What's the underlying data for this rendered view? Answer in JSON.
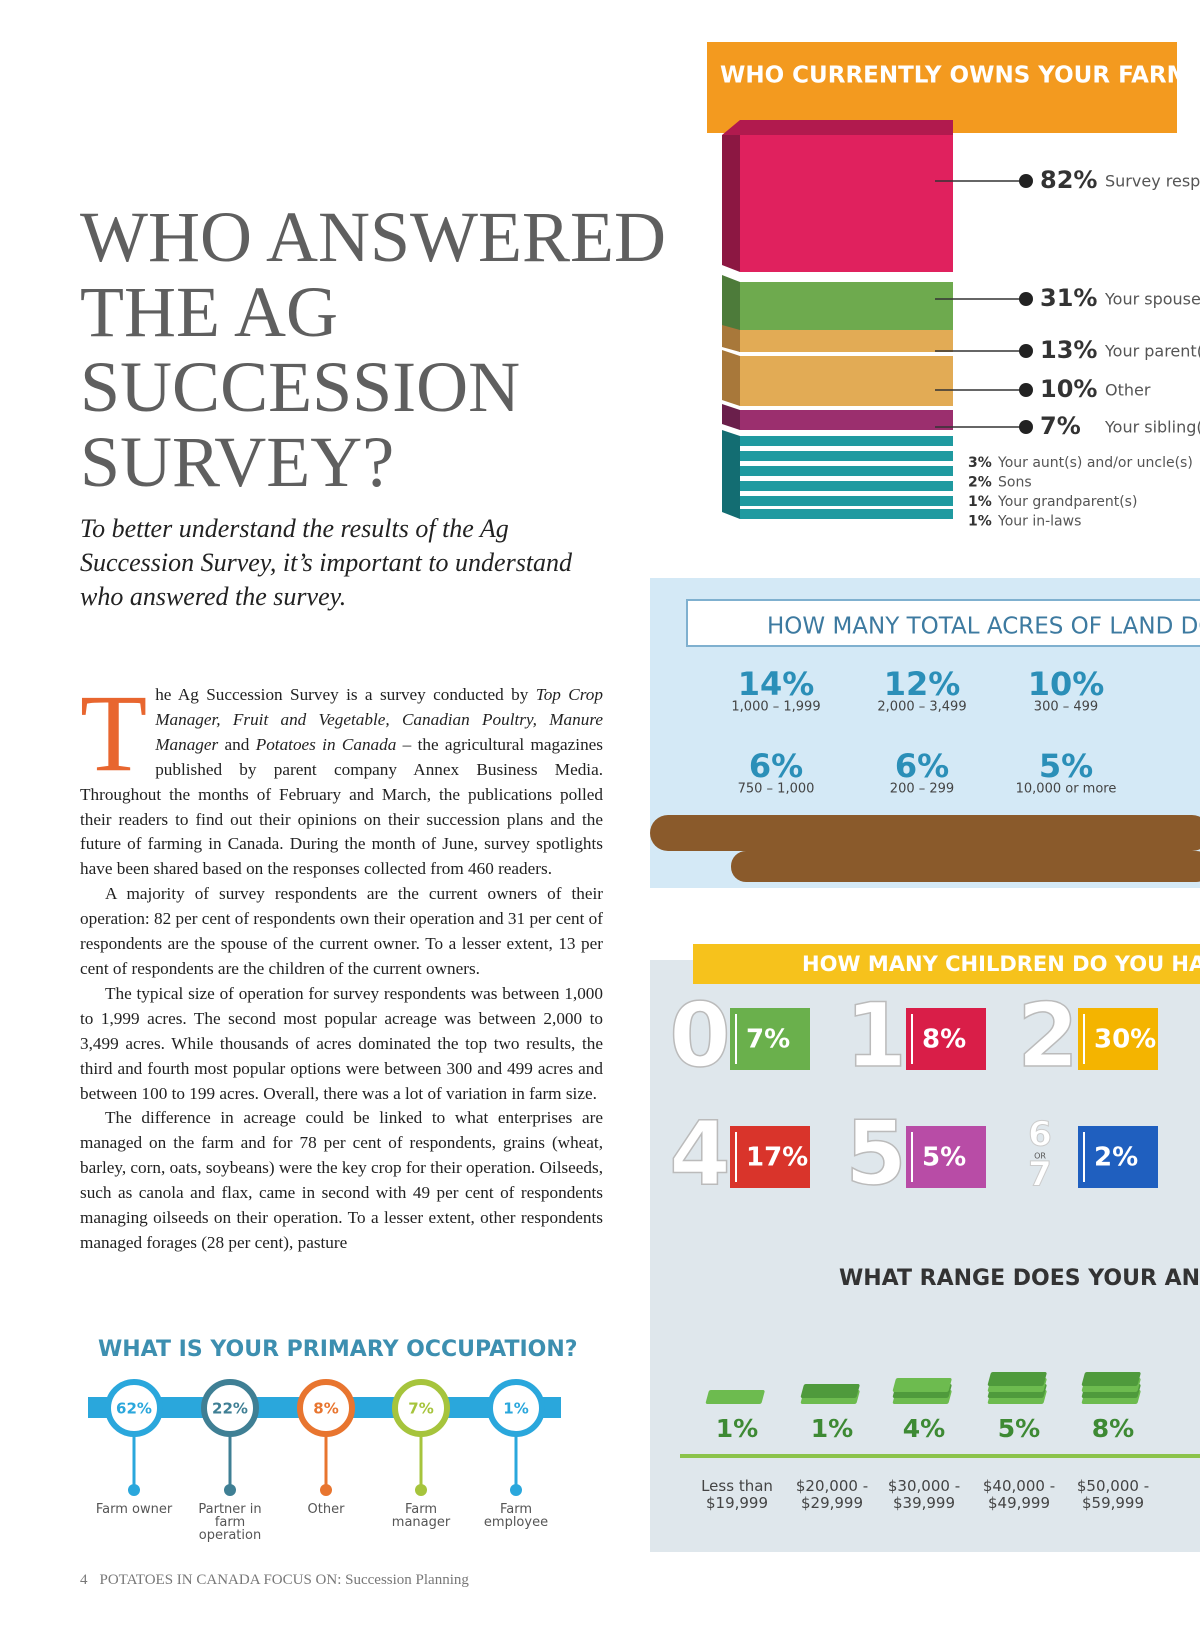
{
  "header": {
    "title": "WHO ANSWERED THE AG SUCCESSION SURVEY?",
    "subtitle": "To better understand the results of the Ag Succession Survey, it’s important to understand who answered the survey."
  },
  "article": {
    "drop_cap": "T",
    "paragraphs": [
      [
        "he Ag Succession Survey is a survey conducted by ",
        "Top Crop Manager, Fruit and Vegetable, Canadian Poultry, Manure Manager",
        " and ",
        "Potatoes in Canada",
        " – the agricultural magazines published by parent company Annex Business Media. Throughout the months of February and March, the publications polled their readers to find out their opinions on their succession plans and the future of farming in Canada. During the month of June, survey spotlights have been shared based on the responses collected from 460 readers."
      ],
      [
        "A majority of survey respondents are the current owners of their operation: 82 per cent of respondents own their operation and 31 per cent of respondents are the spouse of the current owner. To a lesser extent, 13 per cent of respondents are the children of the current owners."
      ],
      [
        "The typical size of operation for survey respondents was between 1,000 to 1,999 acres. The second most popular acreage was between 2,000 to 3,499 acres. While thousands of acres dominated the top two results, the third and fourth most popular options were between 300 and 499 acres and between 100 to 199 acres. Overall, there was a lot of variation in farm size."
      ],
      [
        "The difference in acreage could be linked to what enterprises are managed on the farm and for 78 per cent of respondents, grains (wheat, barley, corn, oats, soybeans) were the key crop for their operation. Oilseeds, such as canola and flax, came in second with 49 per cent of respondents managing oilseeds on their operation. To a lesser extent, other respondents managed forages (28 per cent), pasture"
      ]
    ]
  },
  "occupation": {
    "title": "WHAT IS YOUR PRIMARY OCCUPATION?",
    "items": [
      {
        "value": "62%",
        "label": "Farm owner"
      },
      {
        "value": "22%",
        "label": "Partner in farm operation"
      },
      {
        "value": "8%",
        "label": "Other"
      },
      {
        "value": "7%",
        "label": "Farm manager"
      },
      {
        "value": "1%",
        "label": "Farm employee"
      }
    ]
  },
  "ownership": {
    "title": "WHO CURRENTLY OWNS YOUR FARM?",
    "items": [
      {
        "value": "82%",
        "label": "Survey resp"
      },
      {
        "value": "31%",
        "label": "Your spouse"
      },
      {
        "value": "13%",
        "label": "Your parent("
      },
      {
        "value": "10%",
        "label": "Other"
      },
      {
        "value": "7%",
        "label": "Your sibling(s)"
      }
    ],
    "minor": [
      {
        "value": "3%",
        "label": "Your aunt(s) and/or uncle(s)"
      },
      {
        "value": "2%",
        "label": "Sons"
      },
      {
        "value": "1%",
        "label": "Your grandparent(s)"
      },
      {
        "value": "1%",
        "label": "Your in-laws"
      }
    ]
  },
  "acres": {
    "title": "HOW MANY TOTAL ACRES OF LAND DO",
    "items": [
      {
        "value": "14%",
        "label": "1,000 – 1,999"
      },
      {
        "value": "12%",
        "label": "2,000 – 3,499"
      },
      {
        "value": "10%",
        "label": "300 – 499"
      },
      {
        "value": "6%",
        "label": "750 – 1,000"
      },
      {
        "value": "6%",
        "label": "200 – 299"
      },
      {
        "value": "5%",
        "label": "10,000 or more"
      }
    ]
  },
  "children": {
    "title": "HOW MANY CHILDREN DO YOU HAVE?",
    "items": [
      {
        "count": "0",
        "value": "7%"
      },
      {
        "count": "1",
        "value": "8%"
      },
      {
        "count": "2",
        "value": "30%"
      },
      {
        "count": "4",
        "value": "17%"
      },
      {
        "count": "5",
        "value": "5%"
      },
      {
        "count": "6",
        "or": "OR",
        "count2": "7",
        "value": "2%"
      }
    ]
  },
  "income": {
    "title": "WHAT RANGE DOES YOUR ANNUA",
    "items": [
      {
        "value": "1%",
        "label": "Less than $19,999"
      },
      {
        "value": "1%",
        "label": "$20,000 - $29,999"
      },
      {
        "value": "4%",
        "label": "$30,000 - $39,999"
      },
      {
        "value": "5%",
        "label": "$40,000 - $49,999"
      },
      {
        "value": "8%",
        "label": "$50,000 - $59,999"
      }
    ]
  },
  "footer": {
    "page": "4",
    "text": "POTATOES IN CANADA FOCUS ON: Succession Planning"
  }
}
